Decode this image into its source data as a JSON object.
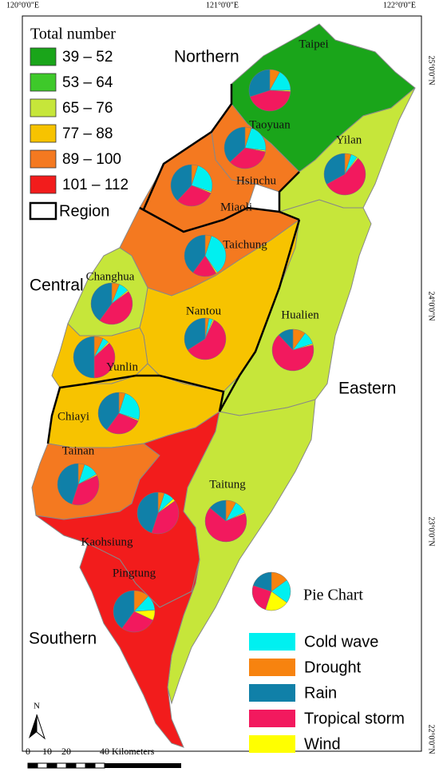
{
  "longitude_labels": [
    "120°0'0\"E",
    "121°0'0\"E",
    "122°0'0\"E"
  ],
  "latitude_labels": [
    "25°0'0\"N",
    "24°0'0\"N",
    "23°0'0\"N",
    "22°0'0\"N"
  ],
  "legend": {
    "title": "Total number",
    "classes": [
      {
        "label": "39 – 52",
        "color": "#1aa51a"
      },
      {
        "label": "53 – 64",
        "color": "#3ec92a"
      },
      {
        "label": "65 – 76",
        "color": "#c6e63a"
      },
      {
        "label": "77 – 88",
        "color": "#f7c300"
      },
      {
        "label": "89 – 100",
        "color": "#f47920"
      },
      {
        "label": "101 – 112",
        "color": "#f21c1c"
      }
    ],
    "region": "Region"
  },
  "regions": [
    "Northern",
    "Central",
    "Eastern",
    "Southern"
  ],
  "pie_legend": {
    "title": "Pie Chart",
    "items": [
      {
        "label": "Cold wave",
        "color": "#00f0f0"
      },
      {
        "label": "Drought",
        "color": "#f7830f"
      },
      {
        "label": "Rain",
        "color": "#1080a8"
      },
      {
        "label": "Tropical storm",
        "color": "#f2195e"
      },
      {
        "label": "Wind",
        "color": "#ffff00"
      }
    ]
  },
  "counties": [
    {
      "name": "Taipei",
      "color": "#1aa51a",
      "pie": [
        17,
        8,
        30,
        44,
        1
      ]
    },
    {
      "name": "Taoyuan",
      "color": "#1aa51a"
    },
    {
      "name": "Hsinchu",
      "color": "#f47920",
      "pie": [
        22,
        5,
        37,
        35,
        1
      ]
    },
    {
      "name": "Yilan",
      "color": "#c6e63a",
      "pie": [
        5,
        5,
        33,
        56,
        1
      ]
    },
    {
      "name": "Miaoli",
      "color": "#f47920",
      "pie": [
        25,
        5,
        38,
        31,
        1
      ]
    },
    {
      "name": "Taichung",
      "color": "#f47920",
      "pie": [
        35,
        5,
        40,
        19,
        1
      ]
    },
    {
      "name": "Changhua",
      "color": "#c6e63a",
      "pie": [
        8,
        6,
        40,
        45,
        1
      ]
    },
    {
      "name": "Nantou",
      "color": "#f7c300",
      "pie": [
        3,
        3,
        34,
        59,
        1
      ]
    },
    {
      "name": "Hualien",
      "color": "#c6e63a",
      "pie": [
        10,
        10,
        12,
        67,
        1
      ]
    },
    {
      "name": "Yunlin",
      "color": "#f7c300",
      "pie": [
        5,
        7,
        50,
        37,
        1
      ]
    },
    {
      "name": "Chiayi",
      "color": "#f7c300",
      "pie": [
        25,
        5,
        40,
        29,
        1
      ]
    },
    {
      "name": "Tainan",
      "color": "#f47920",
      "pie": [
        12,
        5,
        45,
        37,
        1
      ]
    },
    {
      "name": "Kaohsiung",
      "color": "#f21c1c",
      "pie": [
        8,
        5,
        45,
        40,
        2
      ]
    },
    {
      "name": "Taitung",
      "color": "#c6e63a",
      "pie": [
        10,
        8,
        14,
        67,
        1
      ]
    },
    {
      "name": "Pingtung",
      "color": "#f21c1c",
      "pie": [
        12,
        12,
        40,
        28,
        8
      ]
    }
  ],
  "scale_bar": {
    "north": "N",
    "ticks": [
      "0",
      "10",
      "20"
    ],
    "end": "40 Kilometers"
  }
}
